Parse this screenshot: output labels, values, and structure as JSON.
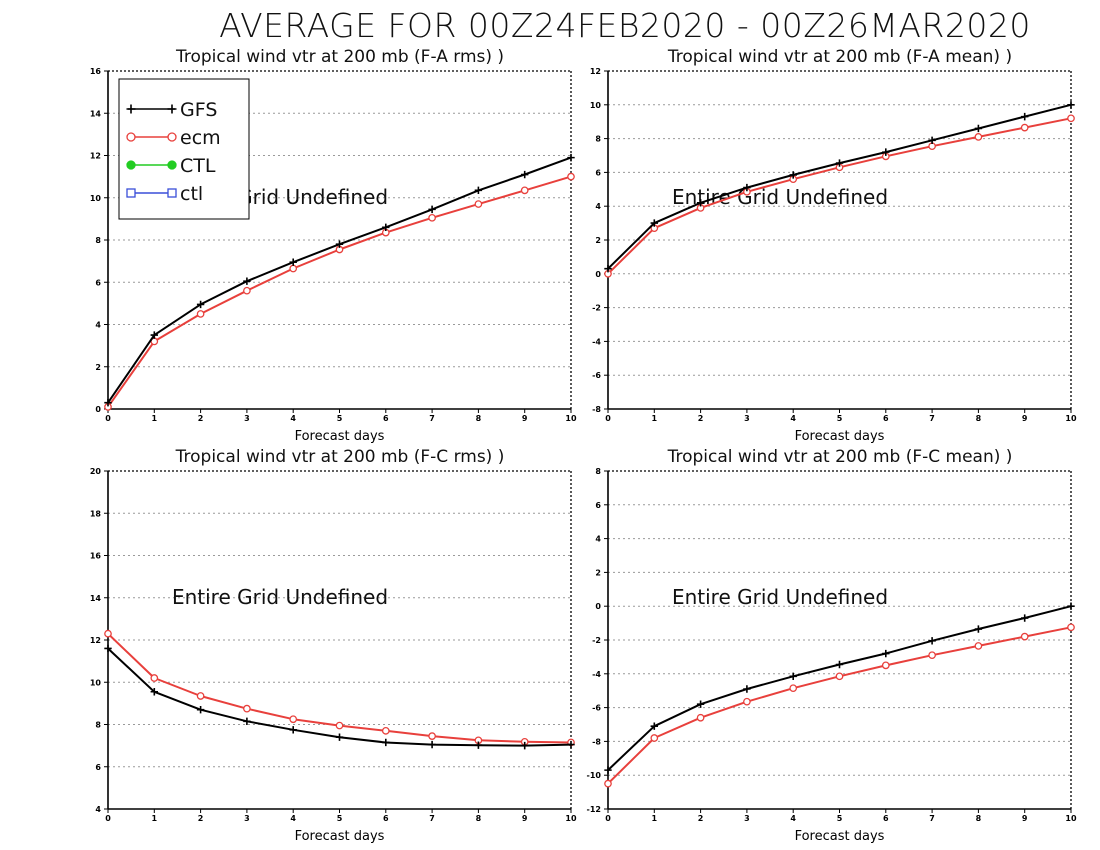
{
  "figure_title": "AVERAGE FOR 00Z24FEB2020 - 00Z26MAR2020",
  "colors": {
    "GFS": "#000000",
    "ecm": "#e8403c",
    "CTL": "#22cc22",
    "ctl": "#3a4fd8"
  },
  "chart_data": [
    {
      "type": "line",
      "title": "Tropical wind vtr at 200 mb (F-A rms) )",
      "xlabel": "Forecast days",
      "x": [
        0,
        1,
        2,
        3,
        4,
        5,
        6,
        7,
        8,
        9,
        10
      ],
      "xlim": [
        0,
        10
      ],
      "ylim": [
        0,
        16
      ],
      "yticks": [
        0,
        2,
        4,
        6,
        8,
        10,
        12,
        14,
        16
      ],
      "grid": true,
      "annotation": "Entire Grid Undefined",
      "legend": {
        "placement": "top-left",
        "entries": [
          {
            "name": "GFS",
            "marker": "plus"
          },
          {
            "name": "ecm",
            "marker": "circle"
          },
          {
            "name": "CTL",
            "marker": "filled-circle"
          },
          {
            "name": "ctl",
            "marker": "square"
          }
        ]
      },
      "series": [
        {
          "name": "GFS",
          "marker": "plus",
          "values": [
            0.3,
            3.5,
            4.95,
            6.05,
            6.95,
            7.8,
            8.6,
            9.45,
            10.35,
            11.1,
            11.9
          ]
        },
        {
          "name": "ecm",
          "marker": "circle",
          "values": [
            0.1,
            3.2,
            4.5,
            5.6,
            6.65,
            7.55,
            8.35,
            9.05,
            9.7,
            10.35,
            11.0
          ]
        }
      ]
    },
    {
      "type": "line",
      "title": "Tropical wind vtr at 200 mb (F-A mean) )",
      "xlabel": "Forecast days",
      "x": [
        0,
        1,
        2,
        3,
        4,
        5,
        6,
        7,
        8,
        9,
        10
      ],
      "xlim": [
        0,
        10
      ],
      "ylim": [
        -8,
        12
      ],
      "yticks": [
        -8,
        -6,
        -4,
        -2,
        0,
        2,
        4,
        6,
        8,
        10,
        12
      ],
      "grid": true,
      "annotation": "Entire Grid Undefined",
      "series": [
        {
          "name": "GFS",
          "marker": "plus",
          "values": [
            0.3,
            3.0,
            4.2,
            5.1,
            5.85,
            6.55,
            7.2,
            7.9,
            8.6,
            9.3,
            10.0
          ]
        },
        {
          "name": "ecm",
          "marker": "circle",
          "values": [
            0.0,
            2.7,
            3.9,
            4.85,
            5.6,
            6.3,
            6.95,
            7.55,
            8.1,
            8.65,
            9.2
          ]
        }
      ]
    },
    {
      "type": "line",
      "title": "Tropical wind vtr at 200 mb (F-C rms) )",
      "xlabel": "Forecast days",
      "x": [
        0,
        1,
        2,
        3,
        4,
        5,
        6,
        7,
        8,
        9,
        10
      ],
      "xlim": [
        0,
        10
      ],
      "ylim": [
        4,
        20
      ],
      "yticks": [
        4,
        6,
        8,
        10,
        12,
        14,
        16,
        18,
        20
      ],
      "grid": true,
      "annotation": "Entire Grid Undefined",
      "series": [
        {
          "name": "GFS",
          "marker": "plus",
          "values": [
            11.6,
            9.55,
            8.7,
            8.15,
            7.75,
            7.4,
            7.15,
            7.05,
            7.02,
            7.0,
            7.05
          ]
        },
        {
          "name": "ecm",
          "marker": "circle",
          "values": [
            12.3,
            10.2,
            9.35,
            8.75,
            8.25,
            7.95,
            7.7,
            7.45,
            7.25,
            7.18,
            7.15
          ]
        }
      ]
    },
    {
      "type": "line",
      "title": "Tropical wind vtr at 200 mb (F-C mean) )",
      "xlabel": "Forecast days",
      "x": [
        0,
        1,
        2,
        3,
        4,
        5,
        6,
        7,
        8,
        9,
        10
      ],
      "xlim": [
        0,
        10
      ],
      "ylim": [
        -12,
        8
      ],
      "yticks": [
        -12,
        -10,
        -8,
        -6,
        -4,
        -2,
        0,
        2,
        4,
        6,
        8
      ],
      "grid": true,
      "annotation": "Entire Grid Undefined",
      "series": [
        {
          "name": "GFS",
          "marker": "plus",
          "values": [
            -9.7,
            -7.1,
            -5.8,
            -4.9,
            -4.15,
            -3.45,
            -2.8,
            -2.05,
            -1.35,
            -0.7,
            0.0
          ]
        },
        {
          "name": "ecm",
          "marker": "circle",
          "values": [
            -10.5,
            -7.8,
            -6.6,
            -5.65,
            -4.85,
            -4.15,
            -3.5,
            -2.9,
            -2.35,
            -1.8,
            -1.25
          ]
        }
      ]
    }
  ]
}
